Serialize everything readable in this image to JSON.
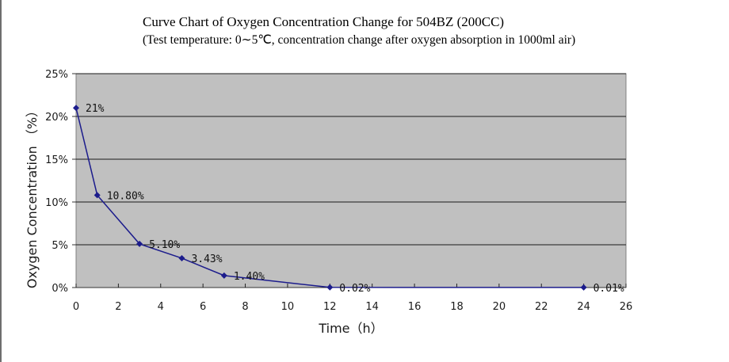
{
  "title": "Curve Chart of Oxygen Concentration Change for 504BZ (200CC)",
  "subtitle": "(Test temperature: 0∼5℃, concentration change after oxygen absorption in 1000ml air)",
  "colors": {
    "plot_background": "#c0c0c0",
    "series_line": "#1c1c8c",
    "gridline": "#1a1a1a"
  },
  "chart_data": {
    "type": "line",
    "title": "Curve Chart of Oxygen Concentration Change for 504BZ (200CC)",
    "subtitle": "(Test temperature: 0∼5℃, concentration change after oxygen absorption in 1000ml air)",
    "xlabel": "Time（h）",
    "ylabel": "Oxygen Concentration （%）",
    "x_ticks": [
      "0",
      "2",
      "4",
      "6",
      "8",
      "10",
      "12",
      "14",
      "16",
      "18",
      "20",
      "22",
      "24",
      "26"
    ],
    "y_ticks": [
      "0%",
      "5%",
      "10%",
      "15%",
      "20%",
      "25%"
    ],
    "xlim": [
      0,
      26
    ],
    "ylim": [
      0,
      25
    ],
    "grid": "horizontal",
    "legend": "none",
    "series": [
      {
        "x": [
          0,
          1,
          3,
          5,
          7,
          12,
          24
        ],
        "values": [
          21,
          10.8,
          5.1,
          3.43,
          1.4,
          0.02,
          0.01
        ],
        "labels": [
          "21%",
          "10.80%",
          "5.10%",
          "3.43%",
          "1.40%",
          "0.02%",
          "0.01%"
        ]
      }
    ]
  }
}
